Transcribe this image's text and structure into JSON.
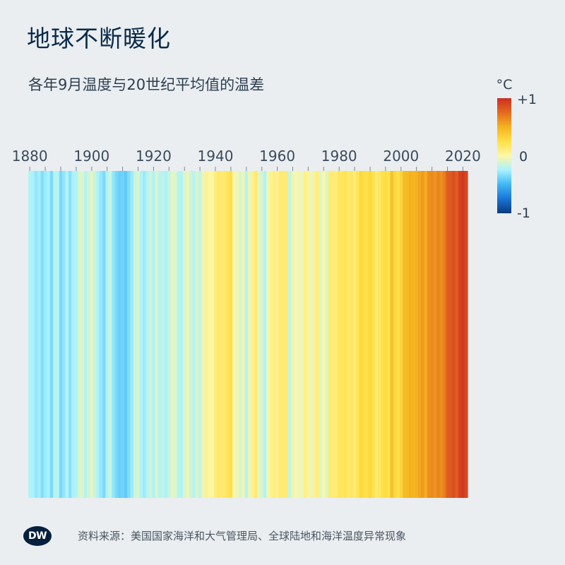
{
  "title": "地球不断暖化",
  "source": "资料来源：美国国家海洋和大气管理局、全球陆地和海洋温度异常现象",
  "logo": "DW",
  "chart_data": {
    "type": "heatmap",
    "subtitle": "各年9月温度与20世纪平均值的温差",
    "unit": "°C",
    "x_start_year": 1880,
    "x_end_year": 2021,
    "tick_labels": [
      "1880",
      "1900",
      "1920",
      "1940",
      "1960",
      "1980",
      "2000",
      "2020"
    ],
    "colorscale": {
      "min": -1,
      "max": 1,
      "labels": [
        "+1",
        "0",
        "-1"
      ],
      "stops": [
        "#0a3b7a",
        "#1a73d8",
        "#3fb7f5",
        "#a8f2ff",
        "#fff7a6",
        "#ffe047",
        "#f5b21f",
        "#e46a1e",
        "#cc2e22"
      ]
    },
    "years": [
      1880,
      1881,
      1882,
      1883,
      1884,
      1885,
      1886,
      1887,
      1888,
      1889,
      1890,
      1891,
      1892,
      1893,
      1894,
      1895,
      1896,
      1897,
      1898,
      1899,
      1900,
      1901,
      1902,
      1903,
      1904,
      1905,
      1906,
      1907,
      1908,
      1909,
      1910,
      1911,
      1912,
      1913,
      1914,
      1915,
      1916,
      1917,
      1918,
      1919,
      1920,
      1921,
      1922,
      1923,
      1924,
      1925,
      1926,
      1927,
      1928,
      1929,
      1930,
      1931,
      1932,
      1933,
      1934,
      1935,
      1936,
      1937,
      1938,
      1939,
      1940,
      1941,
      1942,
      1943,
      1944,
      1945,
      1946,
      1947,
      1948,
      1949,
      1950,
      1951,
      1952,
      1953,
      1954,
      1955,
      1956,
      1957,
      1958,
      1959,
      1960,
      1961,
      1962,
      1963,
      1964,
      1965,
      1966,
      1967,
      1968,
      1969,
      1970,
      1971,
      1972,
      1973,
      1974,
      1975,
      1976,
      1977,
      1978,
      1979,
      1980,
      1981,
      1982,
      1983,
      1984,
      1985,
      1986,
      1987,
      1988,
      1989,
      1990,
      1991,
      1992,
      1993,
      1994,
      1995,
      1996,
      1997,
      1998,
      1999,
      2000,
      2001,
      2002,
      2003,
      2004,
      2005,
      2006,
      2007,
      2008,
      2009,
      2010,
      2011,
      2012,
      2013,
      2014,
      2015,
      2016,
      2017,
      2018,
      2019,
      2020,
      2021
    ],
    "values": [
      -0.22,
      -0.24,
      -0.3,
      -0.26,
      -0.34,
      -0.28,
      -0.25,
      -0.35,
      -0.22,
      -0.2,
      -0.36,
      -0.3,
      -0.22,
      -0.32,
      -0.24,
      -0.22,
      -0.12,
      -0.1,
      -0.2,
      -0.14,
      -0.09,
      -0.14,
      -0.24,
      -0.3,
      -0.35,
      -0.22,
      -0.16,
      -0.3,
      -0.36,
      -0.4,
      -0.38,
      -0.42,
      -0.34,
      -0.28,
      -0.14,
      -0.12,
      -0.22,
      -0.28,
      -0.2,
      -0.14,
      -0.22,
      -0.12,
      -0.2,
      -0.18,
      -0.24,
      -0.16,
      -0.08,
      -0.1,
      -0.2,
      -0.22,
      -0.1,
      -0.06,
      -0.14,
      -0.2,
      -0.12,
      -0.16,
      -0.06,
      0.06,
      0.02,
      -0.02,
      0.12,
      0.16,
      0.14,
      0.15,
      0.2,
      0.25,
      -0.02,
      -0.04,
      -0.1,
      -0.06,
      -0.2,
      -0.06,
      0.06,
      0.14,
      -0.08,
      -0.12,
      -0.22,
      -0.04,
      0.07,
      0.1,
      0.06,
      0.14,
      0.13,
      0.14,
      -0.16,
      -0.06,
      -0.02,
      -0.04,
      -0.06,
      0.08,
      0.04,
      -0.06,
      0.06,
      0.1,
      -0.1,
      -0.02,
      -0.1,
      0.14,
      0.12,
      0.12,
      0.2,
      0.18,
      0.22,
      0.16,
      0.18,
      0.12,
      0.2,
      0.3,
      0.26,
      0.24,
      0.3,
      0.24,
      0.14,
      0.18,
      0.25,
      0.26,
      0.22,
      0.42,
      0.3,
      0.24,
      0.32,
      0.44,
      0.46,
      0.5,
      0.48,
      0.5,
      0.54,
      0.58,
      0.52,
      0.62,
      0.64,
      0.6,
      0.66,
      0.62,
      0.68,
      0.8,
      0.82,
      0.86,
      0.8,
      0.92,
      0.96,
      0.9
    ]
  }
}
